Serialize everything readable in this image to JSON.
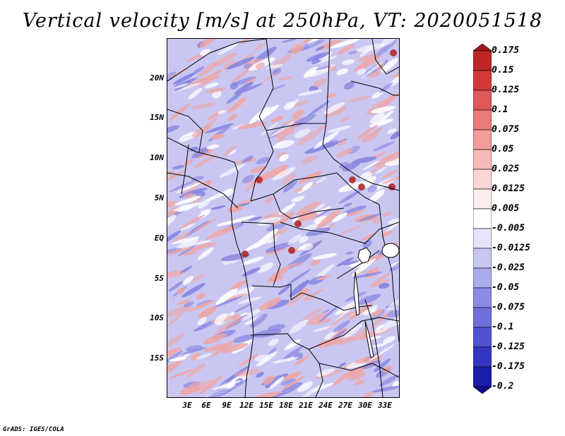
{
  "title": "Vertical velocity [m/s] at 250hPa, VT: 2020051518",
  "footer": "GrADS: IGES/COLA",
  "lat_labels": [
    "20N",
    "15N",
    "10N",
    "5N",
    "EQ",
    "5S",
    "10S",
    "15S"
  ],
  "lon_labels": [
    "3E",
    "6E",
    "9E",
    "12E",
    "15E",
    "18E",
    "21E",
    "24E",
    "27E",
    "30E",
    "33E"
  ],
  "colorbar": {
    "labels": [
      "0.175",
      "0.15",
      "0.125",
      "0.1",
      "0.075",
      "0.05",
      "0.025",
      "0.0125",
      "0.005",
      "-0.005",
      "-0.0125",
      "-0.025",
      "-0.05",
      "-0.075",
      "-0.1",
      "-0.125",
      "-0.175",
      "-0.2"
    ],
    "colors": [
      "#a01818",
      "#bf2525",
      "#d23a3a",
      "#e05858",
      "#ea7a7a",
      "#f29c9c",
      "#f7baba",
      "#fbd6d6",
      "#fdeeee",
      "#ffffff",
      "#e4e4fb",
      "#c7c7f4",
      "#aaaaee",
      "#8c8ce6",
      "#6f6fdd",
      "#5252d2",
      "#3535c4",
      "#1c1cac",
      "#0a0a8a"
    ]
  },
  "map": {
    "base_color": "#c9c7f2",
    "red_patch_color": "#eea6a6",
    "blue_patch_color": "#8585e0",
    "dark_red_color": "#b02020"
  }
}
